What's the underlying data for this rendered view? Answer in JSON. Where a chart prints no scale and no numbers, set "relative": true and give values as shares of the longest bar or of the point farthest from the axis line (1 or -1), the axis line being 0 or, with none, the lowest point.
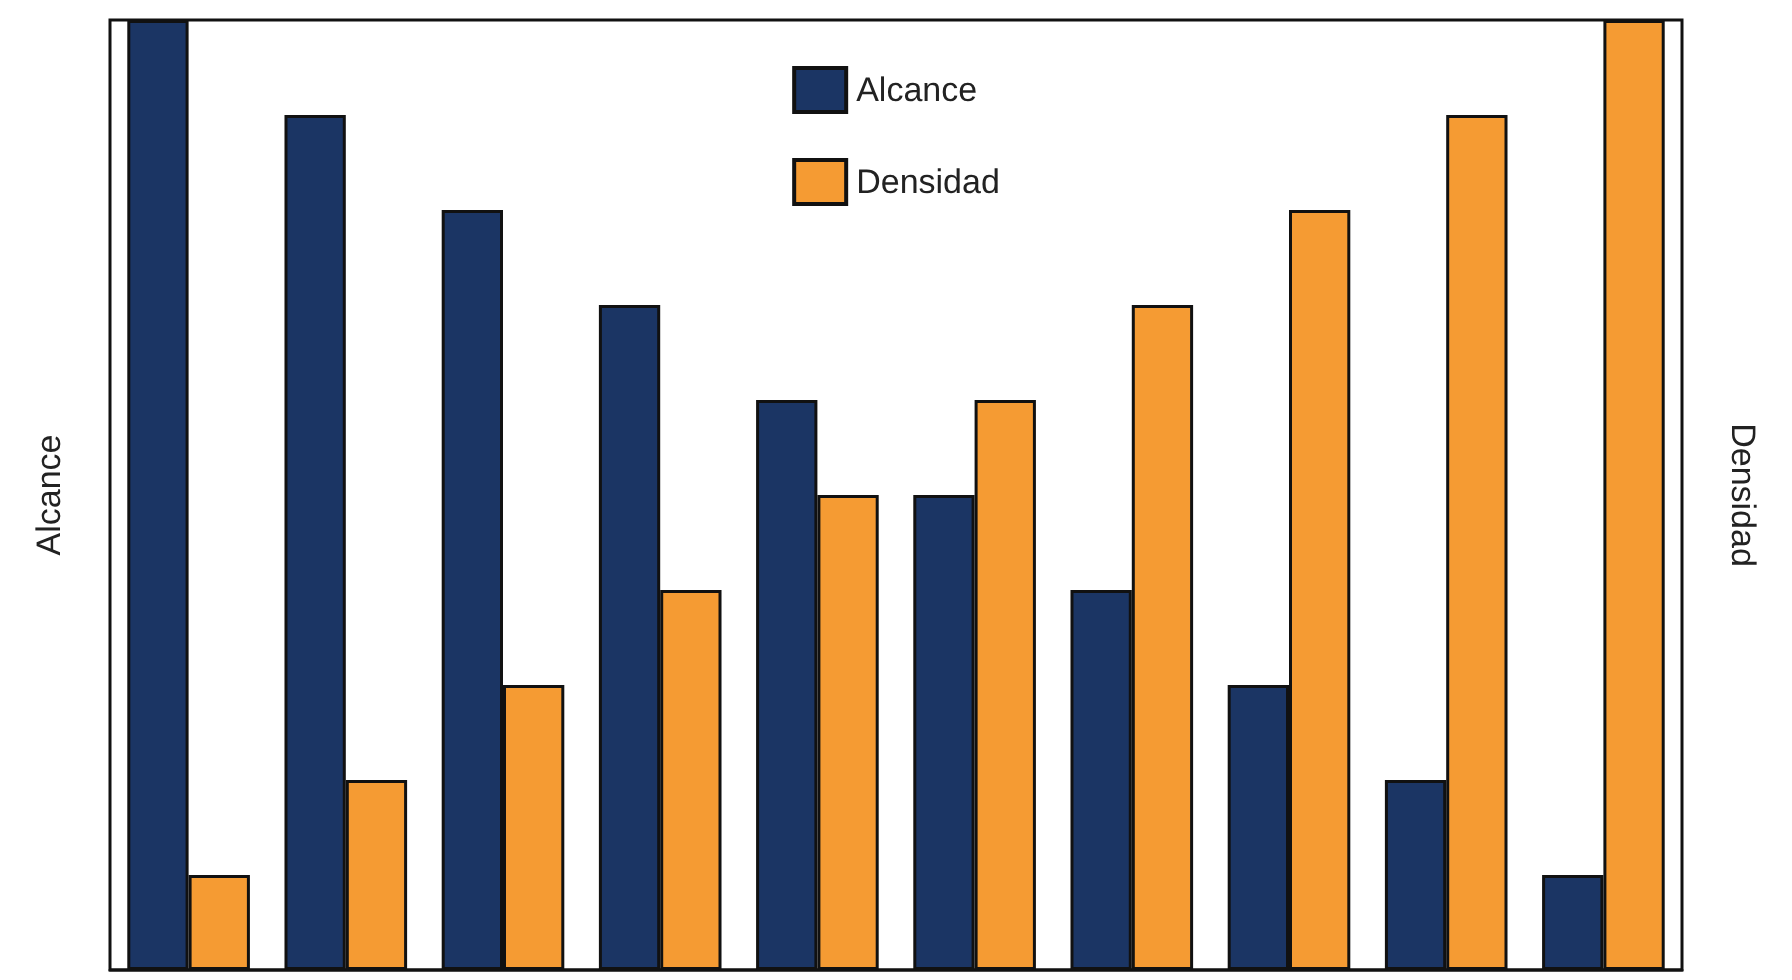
{
  "chart_data": {
    "type": "bar",
    "relative": true,
    "ylabel": "Alcance",
    "y2label": "Densidad",
    "legend": "top",
    "categories": [
      null,
      null,
      null,
      null,
      null,
      null,
      null,
      null,
      null,
      null
    ],
    "series": [
      {
        "name": "Alcance",
        "color": "#1b3564",
        "values": [
          1,
          0.9,
          0.8,
          0.7,
          0.6,
          0.5,
          0.4,
          0.3,
          0.2,
          0.1
        ]
      },
      {
        "name": "Densidad",
        "color": "#f59b33",
        "values": [
          0.1,
          0.2,
          0.3,
          0.4,
          0.5,
          0.6,
          0.7,
          0.8,
          0.9,
          1
        ]
      }
    ]
  }
}
